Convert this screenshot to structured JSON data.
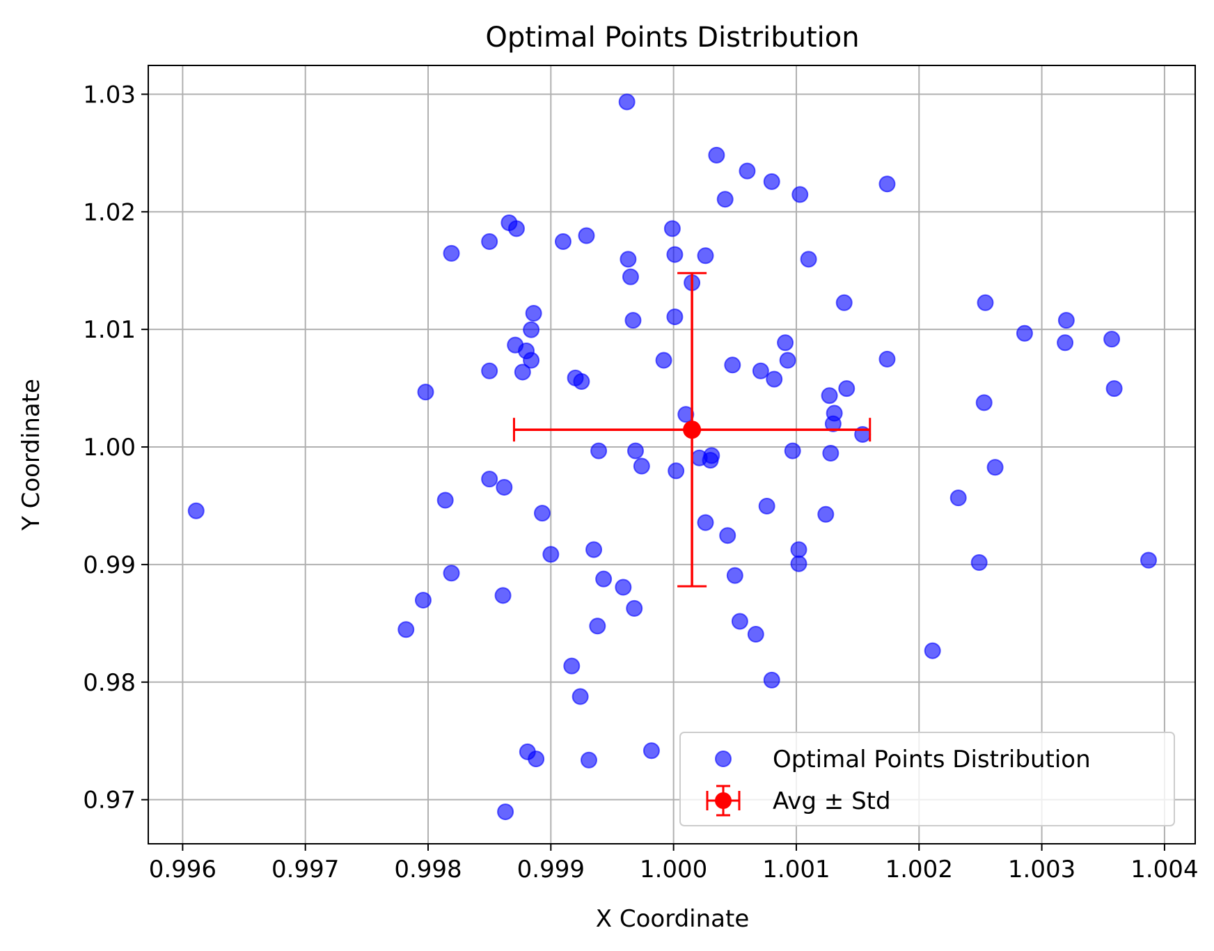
{
  "chart_data": {
    "type": "scatter",
    "title": "Optimal Points Distribution",
    "xlabel": "X Coordinate",
    "ylabel": "Y Coordinate",
    "xlim": [
      0.99572,
      1.00425
    ],
    "ylim": [
      0.96625,
      1.03245
    ],
    "x_ticks": [
      0.996,
      0.997,
      0.998,
      0.999,
      1.0,
      1.001,
      1.002,
      1.003,
      1.004
    ],
    "x_tick_labels": [
      "0.996",
      "0.997",
      "0.998",
      "0.999",
      "1.000",
      "1.001",
      "1.002",
      "1.003",
      "1.004"
    ],
    "y_ticks": [
      0.97,
      0.98,
      0.99,
      1.0,
      1.01,
      1.02,
      1.03
    ],
    "y_tick_labels": [
      "0.97",
      "0.98",
      "0.99",
      "1.00",
      "1.01",
      "1.02",
      "1.03"
    ],
    "grid": true,
    "legend_position": "lower-right",
    "legend": [
      "Optimal Points Distribution",
      "Avg ± Std"
    ],
    "colors": {
      "points": "#0000ff",
      "avg": "#ff0000",
      "grid": "#b0b0b0"
    },
    "series": [
      {
        "name": "Optimal Points Distribution",
        "points": [
          [
            0.99962,
            1.02935
          ],
          [
            1.00035,
            1.02482
          ],
          [
            1.0006,
            1.02347
          ],
          [
            1.0008,
            1.02257
          ],
          [
            1.00103,
            1.02147
          ],
          [
            1.00174,
            1.02237
          ],
          [
            1.00042,
            1.02107
          ],
          [
            0.99866,
            1.01907
          ],
          [
            0.99872,
            1.01857
          ],
          [
            0.99999,
            1.01857
          ],
          [
            0.9985,
            1.01747
          ],
          [
            0.9991,
            1.01747
          ],
          [
            0.99929,
            1.01797
          ],
          [
            0.99819,
            1.01647
          ],
          [
            0.99963,
            1.01597
          ],
          [
            1.00001,
            1.01637
          ],
          [
            1.00026,
            1.01627
          ],
          [
            1.0011,
            1.01597
          ],
          [
            0.99965,
            1.01447
          ],
          [
            1.00015,
            1.01397
          ],
          [
            1.00139,
            1.01227
          ],
          [
            1.00254,
            1.01227
          ],
          [
            1.00286,
            1.00967
          ],
          [
            1.0032,
            1.01077
          ],
          [
            1.00319,
            1.00887
          ],
          [
            1.00357,
            1.00917
          ],
          [
            0.99886,
            1.01137
          ],
          [
            0.99884,
            1.00997
          ],
          [
            0.99967,
            1.01077
          ],
          [
            1.00001,
            1.01107
          ],
          [
            0.99871,
            1.00867
          ],
          [
            0.9988,
            1.00817
          ],
          [
            0.99884,
            1.00737
          ],
          [
            0.99877,
            1.00637
          ],
          [
            0.9985,
            1.00647
          ],
          [
            0.99992,
            1.00737
          ],
          [
            1.00048,
            1.00697
          ],
          [
            1.00071,
            1.00647
          ],
          [
            1.00082,
            1.00577
          ],
          [
            1.00091,
            1.00887
          ],
          [
            1.00093,
            1.00737
          ],
          [
            1.00174,
            1.00747
          ],
          [
            1.00359,
            1.00497
          ],
          [
            0.99798,
            1.00467
          ],
          [
            0.9992,
            1.00587
          ],
          [
            0.99925,
            1.00557
          ],
          [
            1.00127,
            1.00437
          ],
          [
            1.00141,
            1.00497
          ],
          [
            1.00253,
            1.00377
          ],
          [
            1.0001,
            1.00277
          ],
          [
            1.00131,
            1.00287
          ],
          [
            1.0013,
            1.00197
          ],
          [
            1.00154,
            1.00107
          ],
          [
            0.99939,
            0.99967
          ],
          [
            0.99969,
            0.99967
          ],
          [
            0.99974,
            0.99837
          ],
          [
            1.00021,
            0.99907
          ],
          [
            1.00031,
            0.99927
          ],
          [
            1.0003,
            0.99887
          ],
          [
            1.00097,
            0.99967
          ],
          [
            1.00128,
            0.99947
          ],
          [
            1.00002,
            0.99797
          ],
          [
            1.00262,
            0.99827
          ],
          [
            0.9985,
            0.99727
          ],
          [
            0.99862,
            0.99657
          ],
          [
            0.99814,
            0.99547
          ],
          [
            0.99611,
            0.99457
          ],
          [
            0.99893,
            0.99437
          ],
          [
            1.00076,
            0.99497
          ],
          [
            1.00124,
            0.99427
          ],
          [
            1.00232,
            0.99567
          ],
          [
            1.00026,
            0.99357
          ],
          [
            1.00044,
            0.99247
          ],
          [
            0.99935,
            0.99127
          ],
          [
            0.999,
            0.99087
          ],
          [
            1.00102,
            0.99127
          ],
          [
            1.00102,
            0.99007
          ],
          [
            1.00249,
            0.99017
          ],
          [
            1.00387,
            0.99037
          ],
          [
            0.99819,
            0.98927
          ],
          [
            0.99796,
            0.98697
          ],
          [
            0.99861,
            0.98737
          ],
          [
            0.99943,
            0.98877
          ],
          [
            0.99959,
            0.98807
          ],
          [
            0.99968,
            0.98627
          ],
          [
            1.0005,
            0.98907
          ],
          [
            0.99782,
            0.98447
          ],
          [
            0.99938,
            0.98477
          ],
          [
            1.00054,
            0.98517
          ],
          [
            1.00067,
            0.98407
          ],
          [
            1.00211,
            0.98267
          ],
          [
            0.99917,
            0.98137
          ],
          [
            0.99924,
            0.97877
          ],
          [
            1.0008,
            0.98017
          ],
          [
            0.99881,
            0.97407
          ],
          [
            0.99888,
            0.97347
          ],
          [
            0.99931,
            0.97337
          ],
          [
            0.99982,
            0.97417
          ],
          [
            0.99863,
            0.96897
          ]
        ]
      },
      {
        "name": "Avg ± Std",
        "x": 1.00015,
        "y": 1.00147,
        "x_err": 0.00145,
        "y_err": 0.01332
      }
    ]
  }
}
